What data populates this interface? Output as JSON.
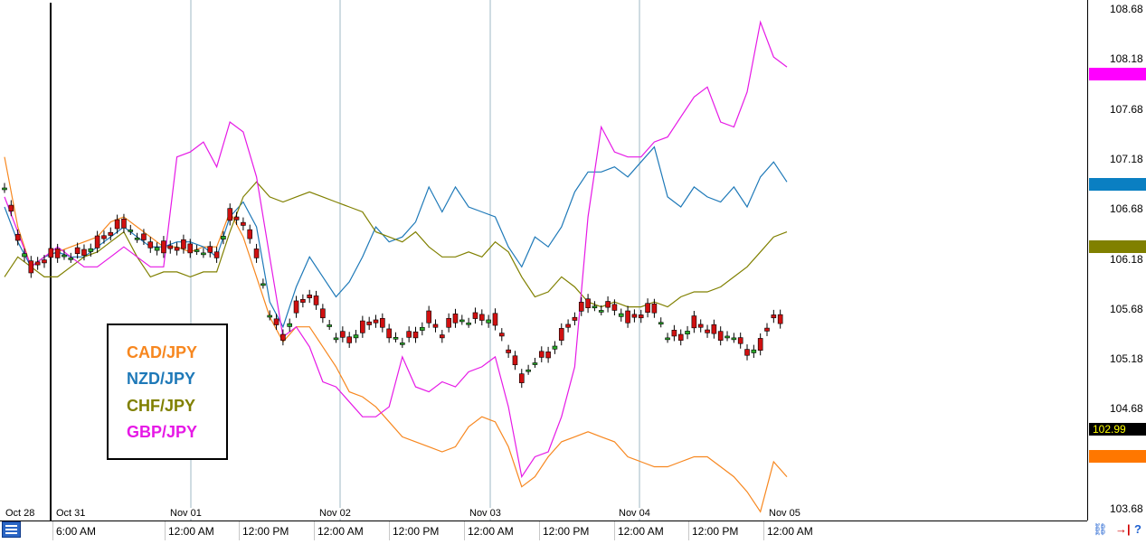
{
  "chart_data": {
    "type": "line",
    "title": "",
    "ylabel": "",
    "xlabel": "",
    "ylim": [
      103.68,
      108.68
    ],
    "y_ticks": [
      "108.68",
      "108.18",
      "107.68",
      "107.18",
      "106.68",
      "106.18",
      "105.68",
      "105.18",
      "104.68",
      "103.68"
    ],
    "x_time_labels": [
      "6:00 AM",
      "12:00 AM",
      "12:00 PM",
      "12:00 AM",
      "12:00 PM",
      "12:00 AM",
      "12:00 PM",
      "12:00 AM",
      "12:00 PM",
      "12:00 AM"
    ],
    "x_date_labels": [
      "Oct 28",
      "Oct 31",
      "Nov 01",
      "Nov 02",
      "Nov 03",
      "Nov 04",
      "Nov 05"
    ],
    "current_price": "102.99",
    "legend_position": "bottom-left",
    "grid": "vertical day separators",
    "series": [
      {
        "name": "CAD/JPY",
        "color": "#f7871f",
        "values": [
          107.2,
          106.5,
          106.1,
          106.2,
          106.25,
          106.3,
          106.35,
          106.4,
          106.55,
          106.6,
          106.5,
          106.4,
          106.3,
          106.3,
          106.25,
          106.3,
          106.3,
          106.65,
          106.4,
          106.0,
          105.6,
          105.35,
          105.5,
          105.5,
          105.3,
          105.1,
          104.85,
          104.8,
          104.7,
          104.55,
          104.4,
          104.35,
          104.3,
          104.25,
          104.3,
          104.5,
          104.6,
          104.55,
          104.3,
          103.9,
          104.0,
          104.2,
          104.35,
          104.4,
          104.45,
          104.4,
          104.35,
          104.2,
          104.15,
          104.1,
          104.1,
          104.15,
          104.2,
          104.2,
          104.1,
          104.0,
          103.85,
          103.65,
          104.15,
          104.0
        ]
      },
      {
        "name": "NZD/JPY",
        "color": "#1e79b8",
        "values": [
          106.7,
          106.35,
          106.1,
          106.2,
          106.25,
          106.2,
          106.2,
          106.3,
          106.4,
          106.5,
          106.4,
          106.3,
          106.3,
          106.35,
          106.35,
          106.3,
          106.2,
          106.6,
          106.75,
          106.5,
          105.75,
          105.5,
          105.9,
          106.2,
          106.0,
          105.8,
          105.95,
          106.2,
          106.5,
          106.35,
          106.4,
          106.55,
          106.9,
          106.65,
          106.9,
          106.7,
          106.65,
          106.6,
          106.3,
          106.1,
          106.4,
          106.3,
          106.5,
          106.85,
          107.05,
          107.05,
          107.1,
          107.0,
          107.15,
          107.3,
          106.8,
          106.7,
          106.9,
          106.8,
          106.75,
          106.9,
          106.7,
          107.0,
          107.15,
          106.95
        ]
      },
      {
        "name": "CHF/JPY",
        "color": "#808000",
        "values": [
          106.0,
          106.2,
          106.1,
          106.0,
          106.0,
          106.1,
          106.2,
          106.25,
          106.35,
          106.45,
          106.2,
          106.0,
          106.05,
          106.05,
          106.0,
          106.05,
          106.05,
          106.45,
          106.8,
          106.95,
          106.8,
          106.75,
          106.8,
          106.85,
          106.8,
          106.75,
          106.7,
          106.65,
          106.45,
          106.4,
          106.35,
          106.45,
          106.3,
          106.2,
          106.2,
          106.25,
          106.2,
          106.35,
          106.25,
          106.0,
          105.8,
          105.85,
          106.0,
          105.9,
          105.75,
          105.7,
          105.75,
          105.7,
          105.7,
          105.75,
          105.7,
          105.8,
          105.85,
          105.85,
          105.9,
          106.0,
          106.1,
          106.25,
          106.4,
          106.45
        ]
      },
      {
        "name": "GBP/JPY",
        "color": "#e619e6",
        "values": [
          106.8,
          106.45,
          106.1,
          106.2,
          106.3,
          106.2,
          106.1,
          106.1,
          106.2,
          106.3,
          106.2,
          106.1,
          106.1,
          107.2,
          107.25,
          107.35,
          107.1,
          107.55,
          107.45,
          107.0,
          106.2,
          105.4,
          105.5,
          105.3,
          104.95,
          104.9,
          104.75,
          104.6,
          104.6,
          104.7,
          105.2,
          104.9,
          104.85,
          104.95,
          104.9,
          105.05,
          105.1,
          105.2,
          104.7,
          104.0,
          104.2,
          104.25,
          104.6,
          105.1,
          106.6,
          107.5,
          107.25,
          107.2,
          107.2,
          107.35,
          107.4,
          107.6,
          107.8,
          107.9,
          107.55,
          107.5,
          107.85,
          108.55,
          108.2,
          108.1
        ]
      },
      {
        "name": "",
        "color": "#000000",
        "values": []
      }
    ]
  },
  "legend": {
    "items": [
      "CAD/JPY",
      "NZD/JPY",
      "CHF/JPY",
      "GBP/JPY"
    ]
  },
  "axis_tags": [
    {
      "color": "#ff00ff",
      "text": ""
    },
    {
      "color": "#0a7fc2",
      "text": ""
    },
    {
      "color": "#808000",
      "text": ""
    },
    {
      "color": "#000000",
      "text": "102.99"
    },
    {
      "color": "#ff7700",
      "text": ""
    }
  ],
  "icons": [
    "menu-icon",
    "link-icon",
    "arrow-red-icon",
    "help-icon"
  ],
  "tools": {
    "link": "⛓",
    "arrow": "→|",
    "help": "?"
  }
}
